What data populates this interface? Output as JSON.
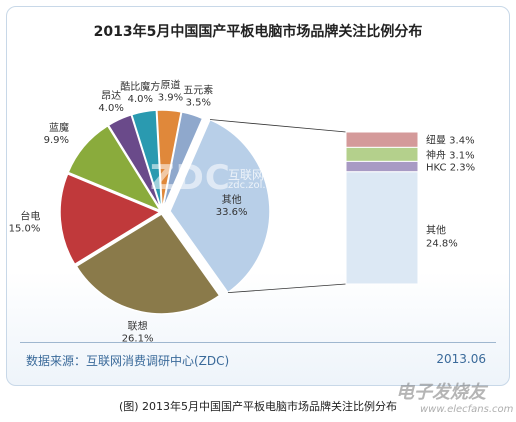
{
  "chart_data": {
    "type": "pie",
    "title": "2013年5月中国国产平板电脑市场品牌关注比例分布",
    "slices": [
      {
        "name": "五元素",
        "label": "3.5%",
        "value": 3.5,
        "color": "#8fa8cc"
      },
      {
        "name": "其他",
        "label": "33.6%",
        "value": 33.6,
        "color": "#b8cfe8",
        "exploded": true
      },
      {
        "name": "联想",
        "label": "26.1%",
        "value": 26.1,
        "color": "#8a7a4a"
      },
      {
        "name": "台电",
        "label": "15.0%",
        "value": 15.0,
        "color": "#c0393b"
      },
      {
        "name": "蓝魔",
        "label": "9.9%",
        "value": 9.9,
        "color": "#8aab3c"
      },
      {
        "name": "昂达",
        "label": "4.0%",
        "value": 4.0,
        "color": "#6a4a8a"
      },
      {
        "name": "酷比魔方",
        "label": "4.0%",
        "value": 4.0,
        "color": "#2a9ab0"
      },
      {
        "name": "原道",
        "label": "3.9%",
        "value": 3.9,
        "color": "#e0883a"
      }
    ],
    "breakdown": {
      "of": "其他",
      "items": [
        {
          "name": "纽曼",
          "label": "3.4%",
          "value": 3.4,
          "color": "#d49a9a"
        },
        {
          "name": "神舟",
          "label": "3.1%",
          "value": 3.1,
          "color": "#b4d08c"
        },
        {
          "name": "HKC",
          "label": "2.3%",
          "value": 2.3,
          "color": "#a89ac4"
        },
        {
          "name": "其他",
          "label": "24.8%",
          "value": 24.8,
          "color": "#dce8f4"
        }
      ]
    }
  },
  "footer": {
    "source": "数据来源：互联网消费调研中心(ZDC)",
    "date": "2013.06"
  },
  "caption": "(图) 2013年5月中国国产平板电脑市场品牌关注比例分布",
  "watermarks": {
    "zdc": "ZDC",
    "zdc_cn": "互联网消费调研中心",
    "zdc_url": "zdc.zol.com.cn",
    "site_cn": "电子发烧友",
    "site_url": "www.elecfans.com"
  }
}
